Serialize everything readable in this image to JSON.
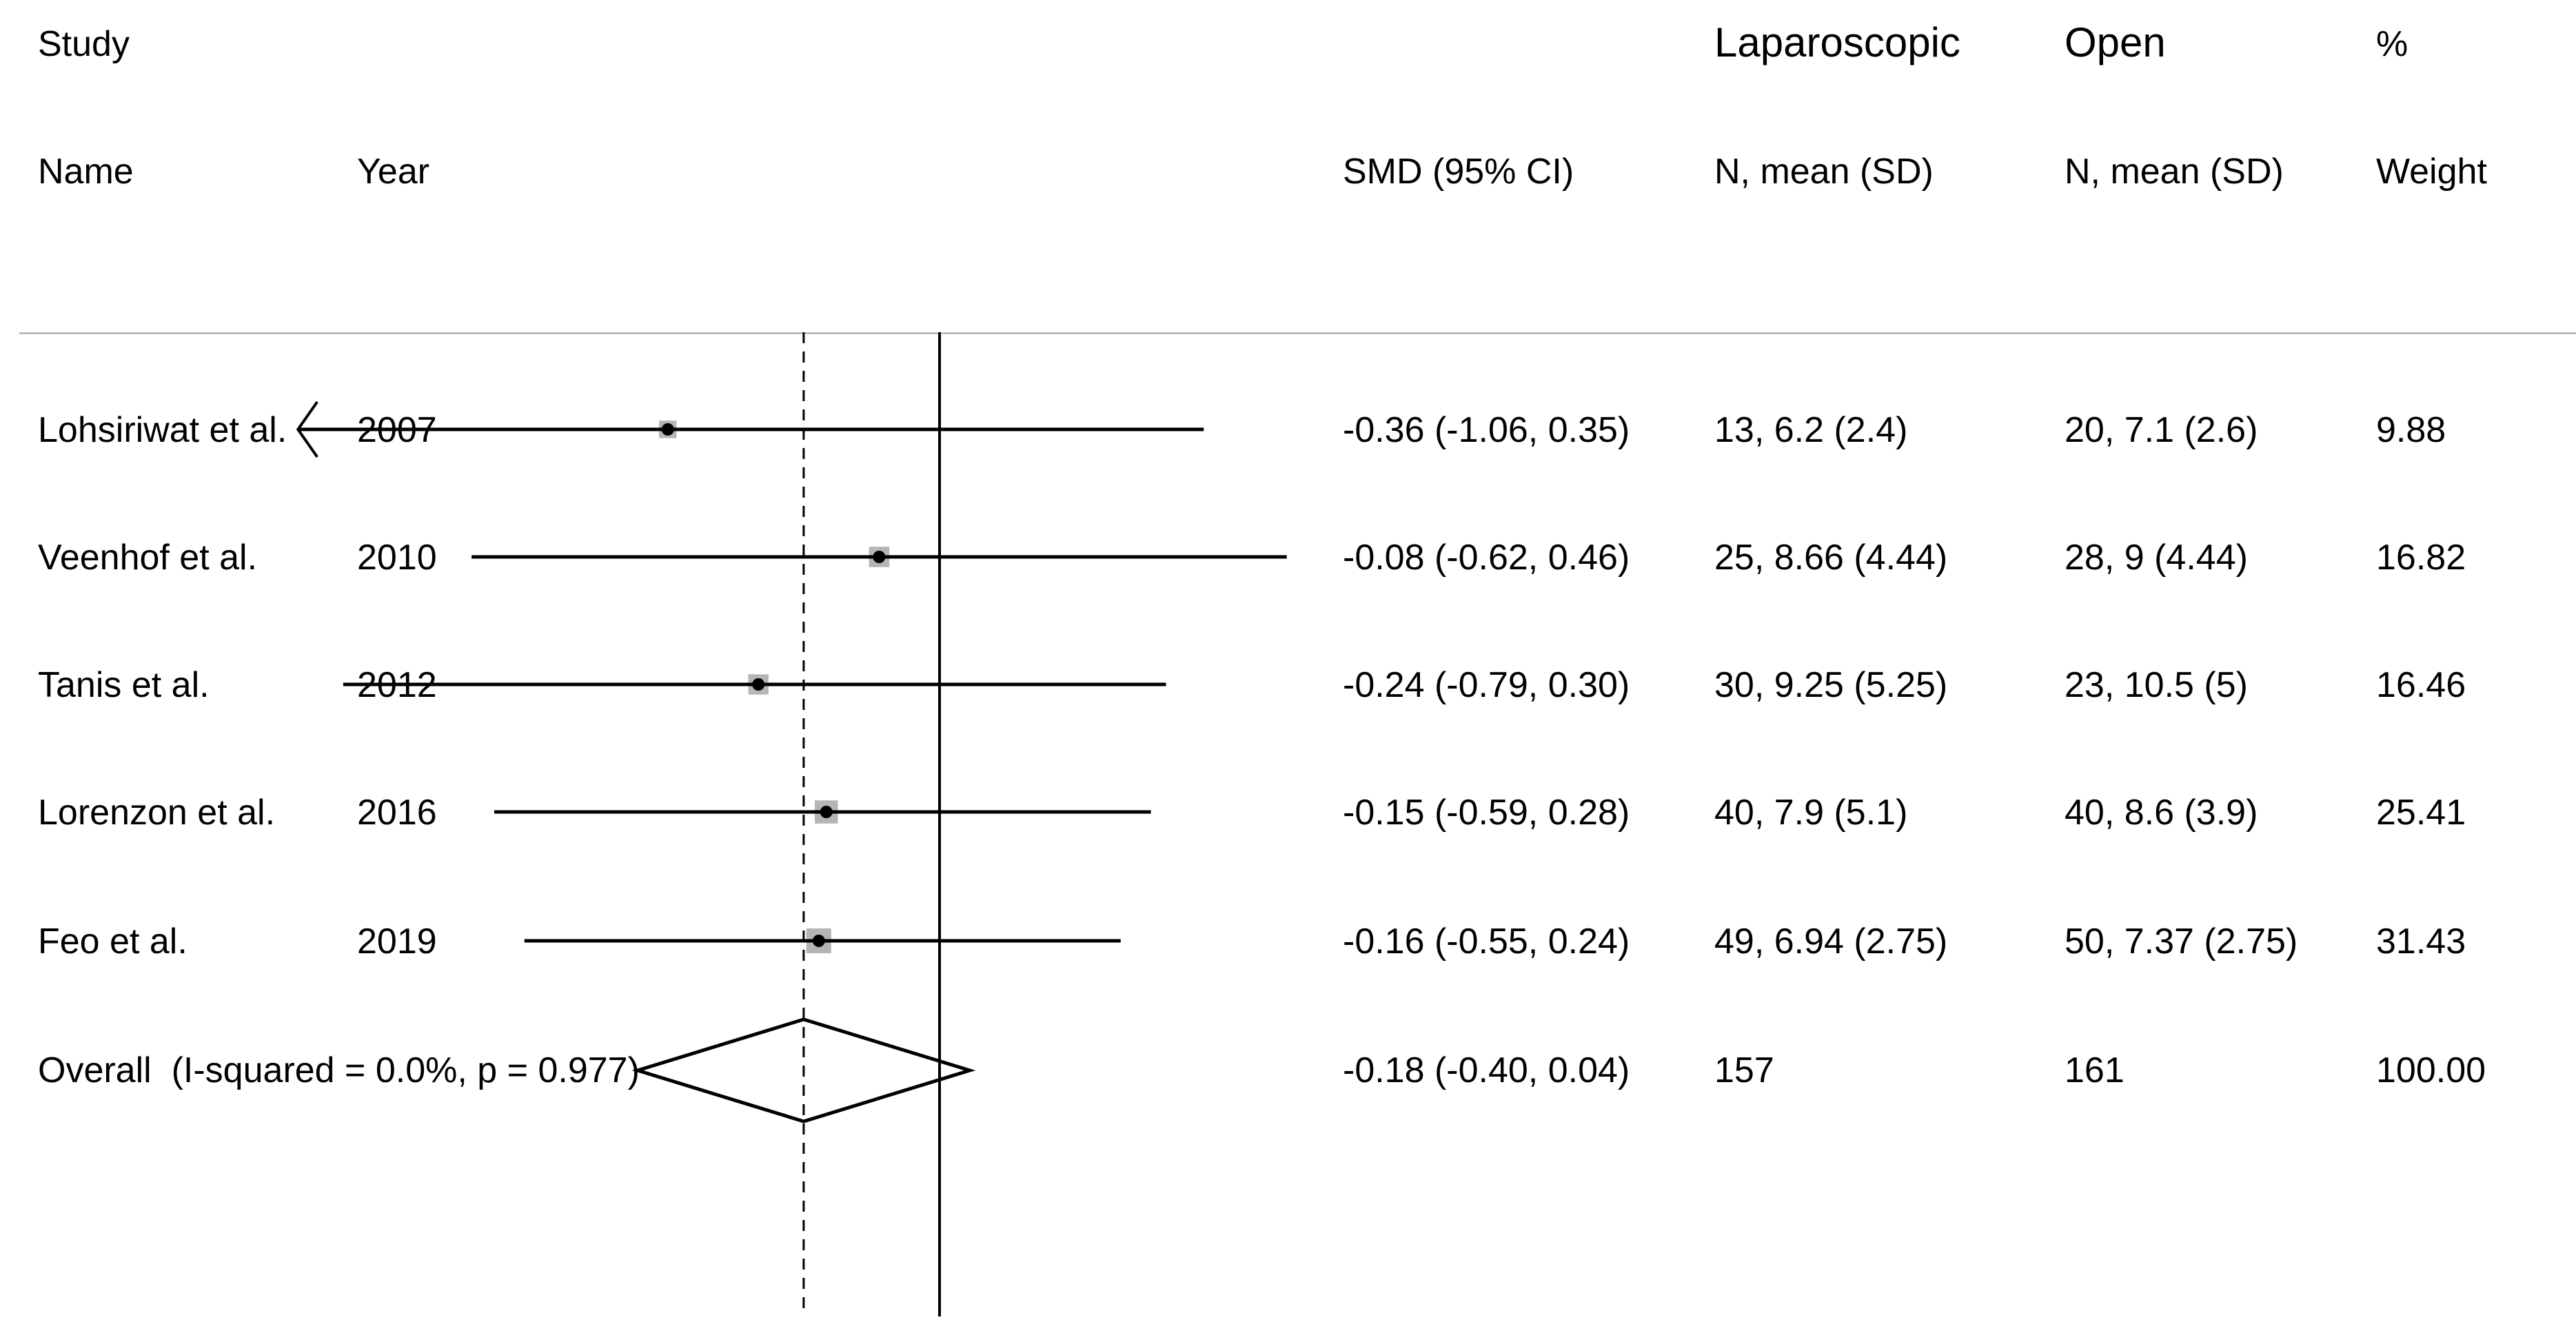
{
  "header": {
    "study": "Study",
    "name": "Name",
    "year": "Year",
    "smd": "SMD (95% CI)",
    "group1": "Laparoscopic",
    "group1_sub": "N, mean (SD)",
    "group2": "Open",
    "group2_sub": "N, mean (SD)",
    "weight_pct": "%",
    "weight": "Weight"
  },
  "rows": [
    {
      "name": "Lohsiriwat et al.",
      "year": "2007",
      "smd_text": "-0.36 (-1.06, 0.35)",
      "lap": "13, 6.2 (2.4)",
      "open": "20, 7.1 (2.6)",
      "weight": "9.88"
    },
    {
      "name": "Veenhof et al.",
      "year": "2010",
      "smd_text": "-0.08 (-0.62, 0.46)",
      "lap": "25, 8.66 (4.44)",
      "open": "28, 9 (4.44)",
      "weight": "16.82"
    },
    {
      "name": "Tanis et al.",
      "year": "2012",
      "smd_text": "-0.24 (-0.79, 0.30)",
      "lap": "30, 9.25 (5.25)",
      "open": "23, 10.5 (5)",
      "weight": "16.46"
    },
    {
      "name": "Lorenzon et al.",
      "year": "2016",
      "smd_text": "-0.15 (-0.59, 0.28)",
      "lap": "40, 7.9 (5.1)",
      "open": "40, 8.6 (3.9)",
      "weight": "25.41"
    },
    {
      "name": "Feo et al.",
      "year": "2019",
      "smd_text": "-0.16 (-0.55, 0.24)",
      "lap": "49, 6.94 (2.75)",
      "open": "50, 7.37 (2.75)",
      "weight": "31.43"
    }
  ],
  "overall": {
    "label": "Overall  (I-squared = 0.0%, p = 0.977)",
    "smd_text": "-0.18 (-0.40, 0.04)",
    "lap": "157",
    "open": "161",
    "weight": "100.00"
  },
  "chart_data": {
    "type": "forest",
    "studies": [
      {
        "name": "Lohsiriwat et al.",
        "year": 2007,
        "smd": -0.36,
        "lo": -1.06,
        "hi": 0.35,
        "weight": 9.88
      },
      {
        "name": "Veenhof et al.",
        "year": 2010,
        "smd": -0.08,
        "lo": -0.62,
        "hi": 0.46,
        "weight": 16.82
      },
      {
        "name": "Tanis et al.",
        "year": 2012,
        "smd": -0.24,
        "lo": -0.79,
        "hi": 0.3,
        "weight": 16.46
      },
      {
        "name": "Lorenzon et al.",
        "year": 2016,
        "smd": -0.15,
        "lo": -0.59,
        "hi": 0.28,
        "weight": 25.41
      },
      {
        "name": "Feo et al.",
        "year": 2019,
        "smd": -0.16,
        "lo": -0.55,
        "hi": 0.24,
        "weight": 31.43
      }
    ],
    "overall": {
      "smd": -0.18,
      "lo": -0.4,
      "hi": 0.04,
      "i_squared": 0.0,
      "p": 0.977
    },
    "null_line": 0,
    "display_xlim": [
      -0.85,
      0.6
    ],
    "dashed_line_at_overall": true,
    "colors": {
      "marker": "#000000",
      "weight_box": "#b5b5b5",
      "lines": "#000000"
    }
  }
}
